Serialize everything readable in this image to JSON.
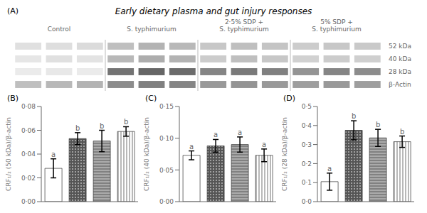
{
  "chart_data": [
    {
      "type": "blot",
      "title": "Early dietary plasma and gut injury responses",
      "annotations": [
        "(A)"
      ],
      "categories": [
        "Control",
        "S. typhimurium",
        "2·5% SDP +\nS. typhimurium",
        "5% SDP +\nS. typhimurium"
      ],
      "rows": [
        "52 kDa",
        "40 kDa",
        "28 kDa",
        "β-Actin"
      ],
      "cells": [
        [
          0.12,
          0.13,
          0.14,
          0.25,
          0.3,
          0.28,
          0.22,
          0.25,
          0.23,
          0.2,
          0.22,
          0.21
        ],
        [
          0.1,
          0.12,
          0.11,
          0.28,
          0.32,
          0.3,
          0.2,
          0.25,
          0.22,
          0.18,
          0.2,
          0.19
        ],
        [
          0.08,
          0.09,
          0.08,
          0.55,
          0.6,
          0.58,
          0.48,
          0.52,
          0.5,
          0.42,
          0.48,
          0.45
        ],
        [
          0.25,
          0.28,
          0.3,
          0.45,
          0.5,
          0.48,
          0.4,
          0.42,
          0.4,
          0.38,
          0.4,
          0.38
        ]
      ]
    },
    {
      "type": "bar",
      "title": "(B)",
      "ylabel": "CRF₁/₂ (50 kDa)/β-actin",
      "categories": [
        null,
        null,
        null,
        null
      ],
      "values": [
        0.028,
        0.053,
        0.051,
        0.059
      ],
      "errors": [
        0.008,
        0.005,
        0.009,
        0.004
      ],
      "annotations": [
        "a",
        "b",
        "b",
        "b"
      ],
      "colors": [
        "white",
        "#555555",
        "#aaaaaa",
        "white"
      ],
      "ylim": [
        0,
        0.08
      ],
      "yticks": [
        {
          "value": 0.0,
          "label": "0·00"
        },
        {
          "value": 0.02,
          "label": "0·02"
        },
        {
          "value": 0.04,
          "label": "0·04"
        },
        {
          "value": 0.06,
          "label": "0·06"
        },
        {
          "value": 0.08,
          "label": "0·08"
        }
      ],
      "tick_labels": "y"
    },
    {
      "type": "bar",
      "title": "(C)",
      "ylabel": "CRF₁/₂ (40 kDa)/β-actin",
      "categories": [
        null,
        null,
        null,
        null
      ],
      "values": [
        0.073,
        0.088,
        0.09,
        0.073
      ],
      "errors": [
        0.007,
        0.01,
        0.012,
        0.01
      ],
      "annotations": [
        "a",
        "a",
        "a",
        "a"
      ],
      "colors": [
        "white",
        "#555555",
        "#aaaaaa",
        "white"
      ],
      "ylim": [
        0,
        0.15
      ],
      "yticks": [
        {
          "value": 0.0,
          "label": "0·00"
        },
        {
          "value": 0.05,
          "label": "0·05"
        },
        {
          "value": 0.1,
          "label": "0·10"
        },
        {
          "value": 0.15,
          "label": "0·15"
        }
      ],
      "tick_labels": "y"
    },
    {
      "type": "bar",
      "title": "(D)",
      "ylabel": "CRF₁/₂ (28 kDa)/β-actin",
      "categories": [
        null,
        null,
        null,
        null
      ],
      "values": [
        0.105,
        0.375,
        0.335,
        0.315
      ],
      "errors": [
        0.045,
        0.05,
        0.045,
        0.03
      ],
      "annotations": [
        "a",
        "b",
        "b",
        "b"
      ],
      "colors": [
        "white",
        "#555555",
        "#aaaaaa",
        "white"
      ],
      "ylim": [
        0,
        0.5
      ],
      "yticks": [
        {
          "value": 0.0,
          "label": "0·0"
        },
        {
          "value": 0.1,
          "label": "0·1"
        },
        {
          "value": 0.2,
          "label": "0·2"
        },
        {
          "value": 0.3,
          "label": "0·3"
        },
        {
          "value": 0.4,
          "label": "0·4"
        },
        {
          "value": 0.5,
          "label": "0·5"
        }
      ],
      "tick_labels": "y"
    }
  ]
}
